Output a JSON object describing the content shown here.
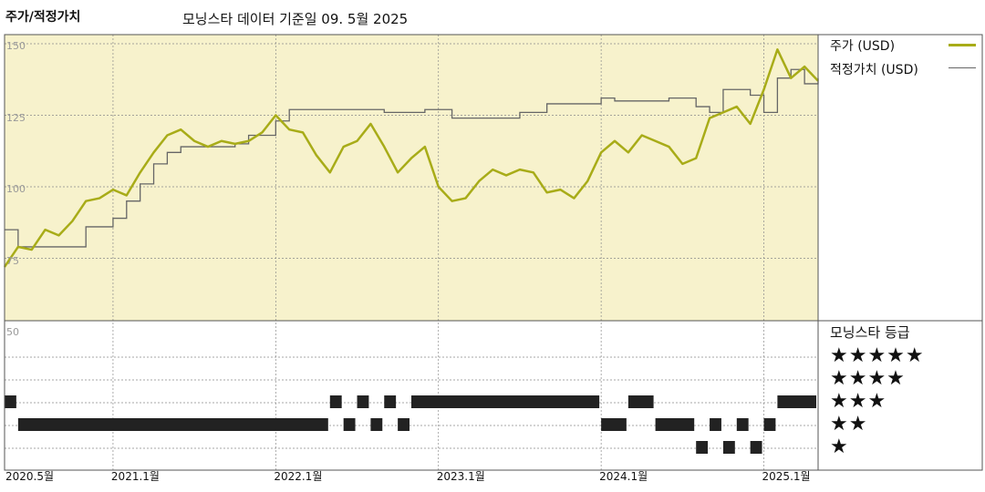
{
  "header": {
    "left_title": "주가/적정가치",
    "right_title": "모닝스타 데이터 기준일 09. 5월 2025"
  },
  "legend": {
    "price_label": "주가 (USD)",
    "fair_label": "적정가치 (USD)",
    "price_color": "#a8ac18",
    "fair_color": "#666666"
  },
  "rating_panel": {
    "title": "모닝스타 등급",
    "rows": [
      "★★★★★",
      "★★★★",
      "★★★",
      "★★",
      "★"
    ]
  },
  "colors": {
    "plot_bg": "#f7f2cc",
    "rating_bar": "#222222"
  },
  "chart_data": [
    {
      "type": "line",
      "title": "",
      "y_ticks": [
        "150",
        "125",
        "100",
        "75",
        "50"
      ],
      "ylim": [
        50,
        152
      ],
      "x_ticks": [
        "2020.5월",
        "2021.1월",
        "2022.1월",
        "2023.1월",
        "2024.1월",
        "2025.1월"
      ],
      "x_tick_dates": [
        "2020-05",
        "2021-01",
        "2022-01",
        "2023-01",
        "2024-01",
        "2025-01"
      ],
      "xlim": [
        "2020-05",
        "2025-05"
      ],
      "grid": true,
      "legend_position": "right",
      "series": [
        {
          "name": "주가 (USD)",
          "points": [
            [
              "2020-05",
              72
            ],
            [
              "2020-06",
              79
            ],
            [
              "2020-07",
              78
            ],
            [
              "2020-08",
              85
            ],
            [
              "2020-09",
              83
            ],
            [
              "2020-10",
              88
            ],
            [
              "2020-11",
              95
            ],
            [
              "2020-12",
              96
            ],
            [
              "2021-01",
              99
            ],
            [
              "2021-02",
              97
            ],
            [
              "2021-03",
              105
            ],
            [
              "2021-04",
              112
            ],
            [
              "2021-05",
              118
            ],
            [
              "2021-06",
              120
            ],
            [
              "2021-07",
              116
            ],
            [
              "2021-08",
              114
            ],
            [
              "2021-09",
              116
            ],
            [
              "2021-10",
              115
            ],
            [
              "2021-11",
              116
            ],
            [
              "2021-12",
              119
            ],
            [
              "2022-01",
              125
            ],
            [
              "2022-02",
              120
            ],
            [
              "2022-03",
              119
            ],
            [
              "2022-04",
              111
            ],
            [
              "2022-05",
              105
            ],
            [
              "2022-06",
              114
            ],
            [
              "2022-07",
              116
            ],
            [
              "2022-08",
              122
            ],
            [
              "2022-09",
              114
            ],
            [
              "2022-10",
              105
            ],
            [
              "2022-11",
              110
            ],
            [
              "2022-12",
              114
            ],
            [
              "2023-01",
              100
            ],
            [
              "2023-02",
              95
            ],
            [
              "2023-03",
              96
            ],
            [
              "2023-04",
              102
            ],
            [
              "2023-05",
              106
            ],
            [
              "2023-06",
              104
            ],
            [
              "2023-07",
              106
            ],
            [
              "2023-08",
              105
            ],
            [
              "2023-09",
              98
            ],
            [
              "2023-10",
              99
            ],
            [
              "2023-11",
              96
            ],
            [
              "2023-12",
              102
            ],
            [
              "2024-01",
              112
            ],
            [
              "2024-02",
              116
            ],
            [
              "2024-03",
              112
            ],
            [
              "2024-04",
              118
            ],
            [
              "2024-05",
              116
            ],
            [
              "2024-06",
              114
            ],
            [
              "2024-07",
              108
            ],
            [
              "2024-08",
              110
            ],
            [
              "2024-09",
              124
            ],
            [
              "2024-10",
              126
            ],
            [
              "2024-11",
              128
            ],
            [
              "2024-12",
              122
            ],
            [
              "2025-01",
              134
            ],
            [
              "2025-02",
              148
            ],
            [
              "2025-03",
              138
            ],
            [
              "2025-04",
              142
            ],
            [
              "2025-05",
              137
            ]
          ]
        },
        {
          "name": "적정가치 (USD)",
          "points": [
            [
              "2020-05",
              85
            ],
            [
              "2020-06",
              79
            ],
            [
              "2020-10",
              79
            ],
            [
              "2020-11",
              86
            ],
            [
              "2021-01",
              89
            ],
            [
              "2021-02",
              95
            ],
            [
              "2021-03",
              101
            ],
            [
              "2021-04",
              108
            ],
            [
              "2021-05",
              112
            ],
            [
              "2021-06",
              114
            ],
            [
              "2021-10",
              115
            ],
            [
              "2021-11",
              118
            ],
            [
              "2022-01",
              123
            ],
            [
              "2022-02",
              127
            ],
            [
              "2022-06",
              127
            ],
            [
              "2022-09",
              126
            ],
            [
              "2022-12",
              127
            ],
            [
              "2023-02",
              124
            ],
            [
              "2023-07",
              126
            ],
            [
              "2023-09",
              129
            ],
            [
              "2024-01",
              131
            ],
            [
              "2024-02",
              130
            ],
            [
              "2024-04",
              130
            ],
            [
              "2024-06",
              131
            ],
            [
              "2024-08",
              128
            ],
            [
              "2024-09",
              126
            ],
            [
              "2024-10",
              134
            ],
            [
              "2024-12",
              132
            ],
            [
              "2025-01",
              126
            ],
            [
              "2025-02",
              138
            ],
            [
              "2025-03",
              141
            ],
            [
              "2025-04",
              136
            ],
            [
              "2025-05",
              138
            ]
          ]
        }
      ]
    },
    {
      "type": "timeline",
      "title": "모닝스타 등급",
      "categories": [
        "★★★★★",
        "★★★★",
        "★★★",
        "★★",
        "★"
      ],
      "xlim": [
        "2020-05",
        "2025-05"
      ],
      "segments": [
        {
          "rating": 4,
          "start": "2020-05",
          "end": "2020-06"
        },
        {
          "rating": 3,
          "start": "2020-06",
          "end": "2022-05"
        },
        {
          "rating": 4,
          "start": "2022-05",
          "end": "2022-06"
        },
        {
          "rating": 3,
          "start": "2022-06",
          "end": "2022-07"
        },
        {
          "rating": 4,
          "start": "2022-07",
          "end": "2022-08"
        },
        {
          "rating": 3,
          "start": "2022-08",
          "end": "2022-09"
        },
        {
          "rating": 4,
          "start": "2022-09",
          "end": "2022-10"
        },
        {
          "rating": 3,
          "start": "2022-10",
          "end": "2022-11"
        },
        {
          "rating": 4,
          "start": "2022-11",
          "end": "2024-01"
        },
        {
          "rating": 3,
          "start": "2024-01",
          "end": "2024-03"
        },
        {
          "rating": 4,
          "start": "2024-03",
          "end": "2024-05"
        },
        {
          "rating": 3,
          "start": "2024-05",
          "end": "2024-08"
        },
        {
          "rating": 2,
          "start": "2024-08",
          "end": "2024-09"
        },
        {
          "rating": 3,
          "start": "2024-09",
          "end": "2024-10"
        },
        {
          "rating": 2,
          "start": "2024-10",
          "end": "2024-11"
        },
        {
          "rating": 3,
          "start": "2024-11",
          "end": "2024-12"
        },
        {
          "rating": 2,
          "start": "2024-12",
          "end": "2025-01"
        },
        {
          "rating": 3,
          "start": "2025-01",
          "end": "2025-02"
        },
        {
          "rating": 4,
          "start": "2025-02",
          "end": "2025-05"
        }
      ]
    }
  ]
}
